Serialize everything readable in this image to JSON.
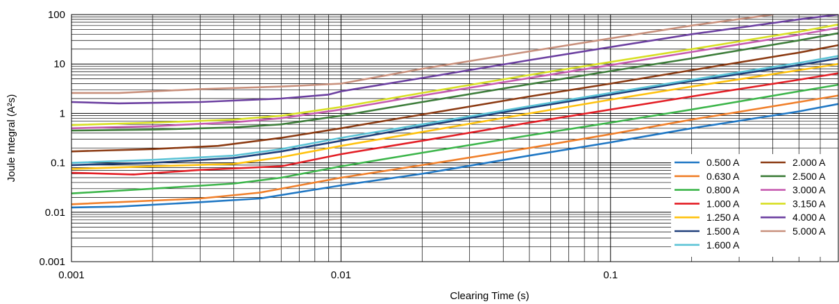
{
  "chart_data": {
    "type": "line",
    "title": "",
    "xlabel": "Clearing Time (s)",
    "ylabel": "Joule Integral (A²s)",
    "x_scale": "log",
    "y_scale": "log",
    "xlim": [
      0.001,
      0.7
    ],
    "ylim": [
      0.001,
      100
    ],
    "x_ticks": [
      {
        "value": 0.001,
        "label": "0.001"
      },
      {
        "value": 0.01,
        "label": "0.01"
      },
      {
        "value": 0.1,
        "label": "0.1"
      }
    ],
    "y_ticks": [
      {
        "value": 100,
        "label": "100"
      },
      {
        "value": 10,
        "label": "10"
      },
      {
        "value": 1,
        "label": "1"
      },
      {
        "value": 0.1,
        "label": "0.1"
      },
      {
        "value": 0.01,
        "label": "0.01"
      },
      {
        "value": 0.001,
        "label": "0.001"
      }
    ],
    "grid": true,
    "legend_placement": "bottom-right",
    "series": [
      {
        "name": "0.500 A",
        "color": "#1f77c4",
        "points": [
          [
            0.001,
            0.0125
          ],
          [
            0.0015,
            0.013
          ],
          [
            0.003,
            0.016
          ],
          [
            0.005,
            0.019
          ],
          [
            0.01,
            0.035
          ],
          [
            0.02,
            0.06
          ],
          [
            0.05,
            0.14
          ],
          [
            0.1,
            0.26
          ],
          [
            0.2,
            0.5
          ],
          [
            0.5,
            1.1
          ],
          [
            0.7,
            1.55
          ]
        ]
      },
      {
        "name": "0.630 A",
        "color": "#f07f2a",
        "points": [
          [
            0.001,
            0.0145
          ],
          [
            0.003,
            0.019
          ],
          [
            0.005,
            0.025
          ],
          [
            0.01,
            0.05
          ],
          [
            0.02,
            0.09
          ],
          [
            0.05,
            0.2
          ],
          [
            0.1,
            0.38
          ],
          [
            0.2,
            0.75
          ],
          [
            0.5,
            1.7
          ],
          [
            0.7,
            2.3
          ]
        ]
      },
      {
        "name": "0.800 A",
        "color": "#3cb54a",
        "points": [
          [
            0.001,
            0.024
          ],
          [
            0.002,
            0.03
          ],
          [
            0.004,
            0.038
          ],
          [
            0.006,
            0.05
          ],
          [
            0.01,
            0.085
          ],
          [
            0.02,
            0.16
          ],
          [
            0.05,
            0.36
          ],
          [
            0.1,
            0.65
          ],
          [
            0.2,
            1.2
          ],
          [
            0.5,
            2.8
          ],
          [
            0.7,
            3.8
          ]
        ]
      },
      {
        "name": "1.000 A",
        "color": "#e31e25",
        "points": [
          [
            0.001,
            0.063
          ],
          [
            0.0017,
            0.058
          ],
          [
            0.003,
            0.072
          ],
          [
            0.006,
            0.085
          ],
          [
            0.01,
            0.15
          ],
          [
            0.02,
            0.28
          ],
          [
            0.05,
            0.65
          ],
          [
            0.1,
            1.2
          ],
          [
            0.2,
            2.2
          ],
          [
            0.5,
            4.8
          ],
          [
            0.7,
            6.5
          ]
        ]
      },
      {
        "name": "1.250 A",
        "color": "#ffc20e",
        "points": [
          [
            0.001,
            0.075
          ],
          [
            0.002,
            0.085
          ],
          [
            0.004,
            0.095
          ],
          [
            0.006,
            0.13
          ],
          [
            0.01,
            0.22
          ],
          [
            0.02,
            0.42
          ],
          [
            0.05,
            1.0
          ],
          [
            0.1,
            1.9
          ],
          [
            0.2,
            3.5
          ],
          [
            0.5,
            7.5
          ],
          [
            0.7,
            10
          ]
        ]
      },
      {
        "name": "1.500 A",
        "color": "#1f3f7a",
        "points": [
          [
            0.001,
            0.09
          ],
          [
            0.002,
            0.1
          ],
          [
            0.004,
            0.125
          ],
          [
            0.006,
            0.17
          ],
          [
            0.01,
            0.28
          ],
          [
            0.02,
            0.55
          ],
          [
            0.05,
            1.3
          ],
          [
            0.1,
            2.4
          ],
          [
            0.2,
            4.5
          ],
          [
            0.5,
            9.5
          ],
          [
            0.7,
            13
          ]
        ]
      },
      {
        "name": "1.600 A",
        "color": "#5bc3d6",
        "points": [
          [
            0.001,
            0.1
          ],
          [
            0.002,
            0.115
          ],
          [
            0.004,
            0.14
          ],
          [
            0.006,
            0.19
          ],
          [
            0.01,
            0.32
          ],
          [
            0.02,
            0.6
          ],
          [
            0.05,
            1.4
          ],
          [
            0.1,
            2.6
          ],
          [
            0.2,
            4.8
          ],
          [
            0.5,
            10.5
          ],
          [
            0.7,
            14.5
          ]
        ]
      },
      {
        "name": "2.000 A",
        "color": "#8b3a12",
        "points": [
          [
            0.001,
            0.17
          ],
          [
            0.002,
            0.19
          ],
          [
            0.0035,
            0.22
          ],
          [
            0.006,
            0.32
          ],
          [
            0.01,
            0.5
          ],
          [
            0.02,
            0.95
          ],
          [
            0.05,
            2.2
          ],
          [
            0.1,
            4.0
          ],
          [
            0.2,
            7.5
          ],
          [
            0.5,
            17
          ],
          [
            0.7,
            24
          ]
        ]
      },
      {
        "name": "2.500 A",
        "color": "#3d7d3a",
        "points": [
          [
            0.001,
            0.45
          ],
          [
            0.002,
            0.47
          ],
          [
            0.004,
            0.52
          ],
          [
            0.006,
            0.6
          ],
          [
            0.01,
            0.9
          ],
          [
            0.02,
            1.7
          ],
          [
            0.05,
            3.9
          ],
          [
            0.1,
            7.2
          ],
          [
            0.2,
            13
          ],
          [
            0.5,
            30
          ],
          [
            0.7,
            42
          ]
        ]
      },
      {
        "name": "3.000 A",
        "color": "#c65bb0",
        "points": [
          [
            0.001,
            0.5
          ],
          [
            0.002,
            0.55
          ],
          [
            0.004,
            0.66
          ],
          [
            0.006,
            0.8
          ],
          [
            0.01,
            1.2
          ],
          [
            0.02,
            2.3
          ],
          [
            0.05,
            5.2
          ],
          [
            0.1,
            9.5
          ],
          [
            0.2,
            17.5
          ],
          [
            0.5,
            39
          ],
          [
            0.7,
            54
          ]
        ]
      },
      {
        "name": "3.150 A",
        "color": "#d7df23",
        "points": [
          [
            0.001,
            0.58
          ],
          [
            0.002,
            0.65
          ],
          [
            0.004,
            0.75
          ],
          [
            0.006,
            0.9
          ],
          [
            0.01,
            1.35
          ],
          [
            0.02,
            2.6
          ],
          [
            0.05,
            6.0
          ],
          [
            0.1,
            11
          ],
          [
            0.2,
            20
          ],
          [
            0.5,
            45
          ],
          [
            0.7,
            63
          ]
        ]
      },
      {
        "name": "4.000 A",
        "color": "#6b3fa0",
        "points": [
          [
            0.001,
            1.7
          ],
          [
            0.0015,
            1.6
          ],
          [
            0.003,
            1.7
          ],
          [
            0.006,
            2.0
          ],
          [
            0.009,
            2.4
          ],
          [
            0.01,
            2.8
          ],
          [
            0.02,
            5.2
          ],
          [
            0.05,
            12
          ],
          [
            0.1,
            22
          ],
          [
            0.2,
            40
          ],
          [
            0.5,
            80
          ],
          [
            0.7,
            100
          ]
        ]
      },
      {
        "name": "5.000 A",
        "color": "#c8907c",
        "points": [
          [
            0.001,
            2.6
          ],
          [
            0.0015,
            2.6
          ],
          [
            0.003,
            3.1
          ],
          [
            0.006,
            3.5
          ],
          [
            0.01,
            4.0
          ],
          [
            0.02,
            8.0
          ],
          [
            0.05,
            18
          ],
          [
            0.1,
            33
          ],
          [
            0.2,
            60
          ],
          [
            0.4,
            100
          ]
        ]
      }
    ]
  }
}
